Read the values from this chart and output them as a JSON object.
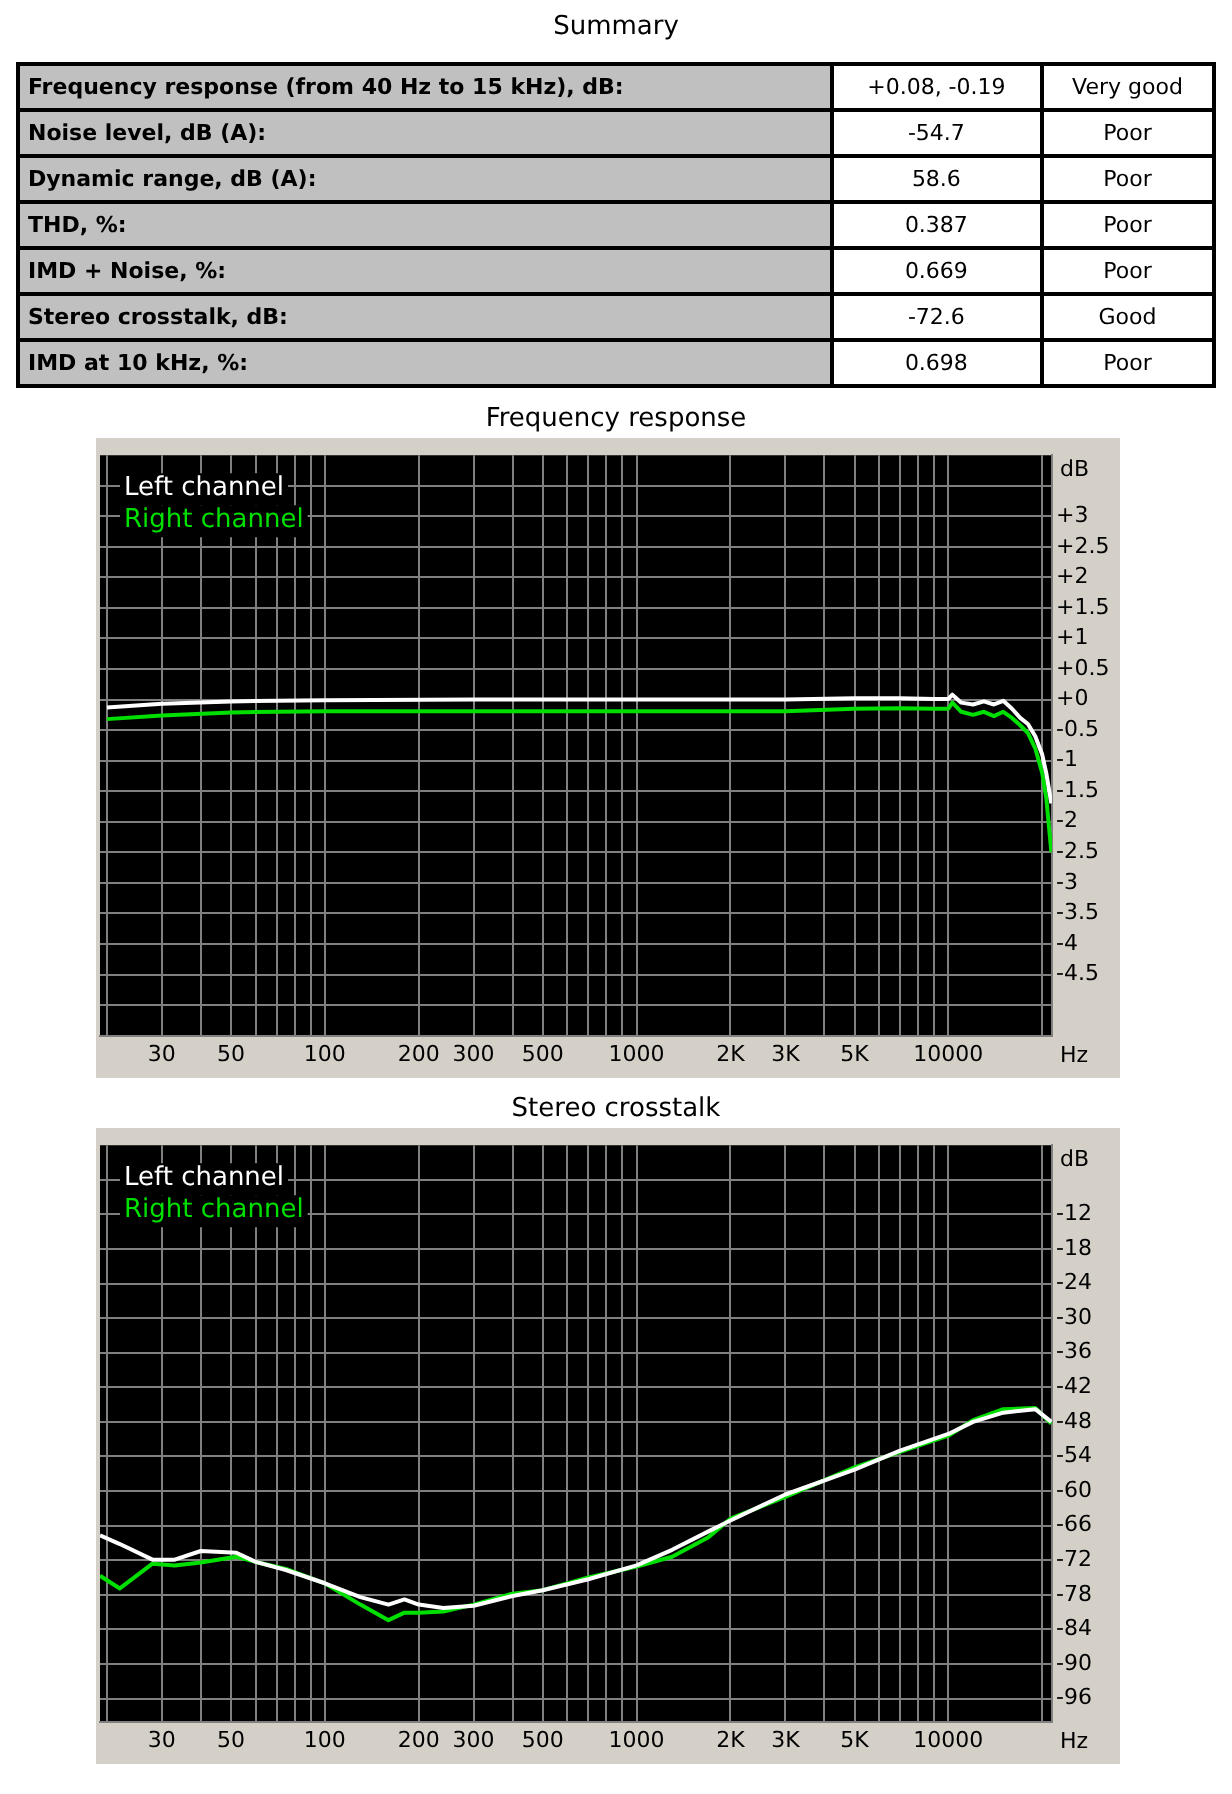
{
  "chart_data": [
    {
      "type": "other",
      "title": "Summary",
      "annotations": [
        "Frequency response (from 40 Hz to 15 kHz), dB:",
        "+0.08, -0.19",
        "Very good",
        "Noise level, dB (A):",
        "-54.7",
        "Poor",
        "Dynamic range, dB (A):",
        "58.6",
        "Poor",
        "THD, %:",
        "0.387",
        "Poor",
        "IMD + Noise, %:",
        "0.669",
        "Poor",
        "Stereo crosstalk, dB:",
        "-72.6",
        "Good",
        "IMD at 10 kHz, %:",
        "0.698",
        "Poor"
      ]
    },
    {
      "type": "line",
      "title": "Frequency response",
      "xlabel": "Hz",
      "ylabel": "dB",
      "log": "x",
      "grid": true,
      "legend": "top left",
      "marker": "none",
      "xlim": [
        19,
        21500
      ],
      "xticks": [
        {
          "value": 20,
          "label": null
        },
        30,
        {
          "value": 40,
          "label": null
        },
        50,
        {
          "value": 60,
          "label": null
        },
        {
          "value": 70,
          "label": null
        },
        {
          "value": 80,
          "label": null
        },
        {
          "value": 90,
          "label": null
        },
        100,
        200,
        300,
        {
          "value": 400,
          "label": null
        },
        500,
        {
          "value": 600,
          "label": null
        },
        {
          "value": 700,
          "label": null
        },
        {
          "value": 800,
          "label": null
        },
        {
          "value": 900,
          "label": null
        },
        1000,
        {
          "value": 2000,
          "label": "2K"
        },
        {
          "value": 3000,
          "label": "3K"
        },
        {
          "value": 4000,
          "label": null
        },
        {
          "value": 5000,
          "label": "5K"
        },
        {
          "value": 6000,
          "label": null
        },
        {
          "value": 7000,
          "label": null
        },
        {
          "value": 8000,
          "label": null
        },
        {
          "value": 9000,
          "label": null
        },
        10000,
        {
          "value": 20000,
          "label": null
        }
      ],
      "ylim": [
        -5.5,
        4
      ],
      "yticks": [
        {
          "value": 3.5,
          "label": null
        },
        {
          "value": 3,
          "label": "+3"
        },
        {
          "value": 2.5,
          "label": "+2.5"
        },
        {
          "value": 2,
          "label": "+2"
        },
        {
          "value": 1.5,
          "label": "+1.5"
        },
        {
          "value": 1,
          "label": "+1"
        },
        {
          "value": 0.5,
          "label": "+0.5"
        },
        {
          "value": 0,
          "label": "+0"
        },
        -0.5,
        -1,
        -1.5,
        -2,
        -2.5,
        -3,
        -3.5,
        -4,
        -4.5,
        {
          "value": -5,
          "label": null
        }
      ],
      "x": [
        20,
        30,
        50,
        100,
        300,
        1000,
        3000,
        5000,
        7000,
        9000,
        10000,
        10300,
        11000,
        12000,
        13000,
        14000,
        15000,
        16000,
        17000,
        18000,
        19000,
        20000,
        20600,
        21400
      ],
      "series": [
        {
          "name": "Left channel",
          "color": "#ffffff",
          "values": [
            -0.13,
            -0.07,
            -0.03,
            -0.01,
            0,
            0,
            0,
            0.02,
            0.02,
            0.01,
            0.01,
            0.08,
            -0.05,
            -0.08,
            -0.03,
            -0.08,
            -0.02,
            -0.15,
            -0.3,
            -0.4,
            -0.6,
            -0.9,
            -1.2,
            -1.7
          ]
        },
        {
          "name": "Right channel",
          "color": "#00e000",
          "values": [
            -0.32,
            -0.26,
            -0.21,
            -0.19,
            -0.19,
            -0.19,
            -0.19,
            -0.15,
            -0.14,
            -0.15,
            -0.15,
            -0.05,
            -0.2,
            -0.25,
            -0.2,
            -0.27,
            -0.2,
            -0.3,
            -0.42,
            -0.55,
            -0.8,
            -1.2,
            -1.6,
            -2.5
          ]
        }
      ]
    },
    {
      "type": "line",
      "title": "Stereo crosstalk",
      "xlabel": "Hz",
      "ylabel": "dB",
      "log": "x",
      "grid": true,
      "legend": "top left",
      "marker": "none",
      "xlim": [
        19,
        21500
      ],
      "xticks": [
        {
          "value": 20,
          "label": null
        },
        30,
        {
          "value": 40,
          "label": null
        },
        50,
        {
          "value": 60,
          "label": null
        },
        {
          "value": 70,
          "label": null
        },
        {
          "value": 80,
          "label": null
        },
        {
          "value": 90,
          "label": null
        },
        100,
        200,
        300,
        {
          "value": 400,
          "label": null
        },
        500,
        {
          "value": 600,
          "label": null
        },
        {
          "value": 700,
          "label": null
        },
        {
          "value": 800,
          "label": null
        },
        {
          "value": 900,
          "label": null
        },
        1000,
        {
          "value": 2000,
          "label": "2K"
        },
        {
          "value": 3000,
          "label": "3K"
        },
        {
          "value": 4000,
          "label": null
        },
        {
          "value": 5000,
          "label": "5K"
        },
        {
          "value": 6000,
          "label": null
        },
        {
          "value": 7000,
          "label": null
        },
        {
          "value": 8000,
          "label": null
        },
        {
          "value": 9000,
          "label": null
        },
        10000,
        {
          "value": 20000,
          "label": null
        }
      ],
      "ylim": [
        -100,
        0
      ],
      "yticks": [
        {
          "value": -6,
          "label": null
        },
        -12,
        -18,
        -24,
        -30,
        -36,
        -42,
        -48,
        -54,
        -60,
        -66,
        -72,
        -78,
        -84,
        -90,
        -96
      ],
      "x": [
        19,
        22,
        28,
        33,
        40,
        52,
        60,
        75,
        100,
        130,
        160,
        180,
        200,
        240,
        300,
        400,
        500,
        700,
        1000,
        1300,
        1700,
        2000,
        3000,
        5000,
        7000,
        10000,
        12000,
        15000,
        19000,
        21400
      ],
      "series": [
        {
          "name": "Left channel",
          "color": "#ffffff",
          "values": [
            -67.7,
            -69.2,
            -71.9,
            -71.9,
            -70.4,
            -70.7,
            -72.3,
            -73.7,
            -76,
            -78.4,
            -79.7,
            -78.8,
            -79.7,
            -80.3,
            -79.9,
            -78.2,
            -77.2,
            -75.3,
            -72.9,
            -70.2,
            -67,
            -65.1,
            -60.6,
            -56.3,
            -53,
            -50.1,
            -48,
            -46.4,
            -45.8,
            -48
          ]
        },
        {
          "name": "Right channel",
          "color": "#00e000",
          "values": [
            -74.7,
            -76.9,
            -72.6,
            -72.9,
            -72.4,
            -71.4,
            -72.3,
            -73.5,
            -76,
            -79.7,
            -82.4,
            -81.1,
            -81.1,
            -80.9,
            -79.7,
            -77.8,
            -77.2,
            -75,
            -73.1,
            -71.4,
            -68,
            -64.8,
            -61,
            -55.9,
            -53.2,
            -50.4,
            -47.7,
            -45.8,
            -45.6,
            -48.3
          ]
        }
      ]
    }
  ]
}
